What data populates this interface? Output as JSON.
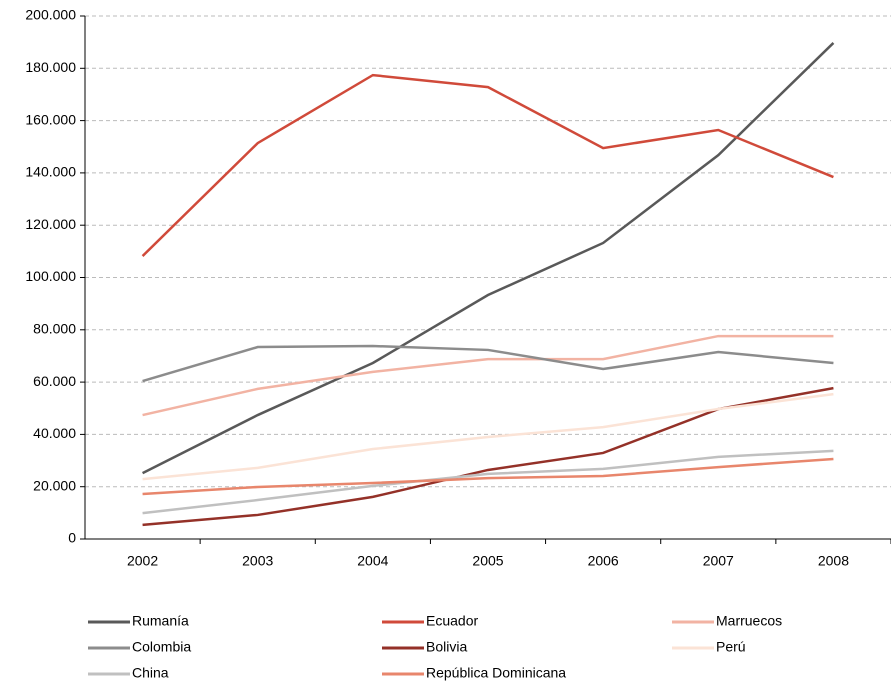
{
  "chart_data": {
    "type": "line",
    "categories": [
      "2002",
      "2003",
      "2004",
      "2005",
      "2006",
      "2007",
      "2008"
    ],
    "series": [
      {
        "name": "Rumanía",
        "color": "#595959",
        "values": [
          25200,
          47400,
          67300,
          93300,
          113200,
          146800,
          189700
        ]
      },
      {
        "name": "Ecuador",
        "color": "#d04a3a",
        "values": [
          108200,
          151400,
          177400,
          172800,
          149500,
          156400,
          138400
        ]
      },
      {
        "name": "Marruecos",
        "color": "#f2b3a3",
        "values": [
          47400,
          57400,
          63900,
          68800,
          68800,
          77600,
          77600
        ]
      },
      {
        "name": "Colombia",
        "color": "#8c8c8c",
        "values": [
          60400,
          73400,
          73800,
          72300,
          65000,
          71500,
          67300
        ]
      },
      {
        "name": "Bolivia",
        "color": "#943128",
        "values": [
          5400,
          9200,
          16100,
          26400,
          32900,
          49700,
          57700
        ]
      },
      {
        "name": "Perú",
        "color": "#fbe3d6",
        "values": [
          22900,
          27200,
          34400,
          39000,
          42800,
          49700,
          55400
        ]
      },
      {
        "name": "China",
        "color": "#c0c0c0",
        "values": [
          9900,
          14900,
          20300,
          24900,
          26800,
          31400,
          33700
        ]
      },
      {
        "name": "República Dominicana",
        "color": "#e8866c",
        "values": [
          17200,
          19900,
          21400,
          23300,
          24100,
          27500,
          30600
        ]
      }
    ],
    "ylim": [
      0,
      200000
    ],
    "yticks": [
      0,
      {
        "value": 20000,
        "label": "20.000"
      },
      {
        "value": 40000,
        "label": "40.000"
      },
      {
        "value": 60000,
        "label": "60.000"
      },
      {
        "value": 80000,
        "label": "80.000"
      },
      {
        "value": 100000,
        "label": "100.000"
      },
      {
        "value": 120000,
        "label": "120.000"
      },
      {
        "value": 140000,
        "label": "140.000"
      },
      {
        "value": 160000,
        "label": "160.000"
      },
      {
        "value": 180000,
        "label": "180.000"
      },
      {
        "value": 200000,
        "label": "200.000"
      }
    ],
    "grid": true
  }
}
